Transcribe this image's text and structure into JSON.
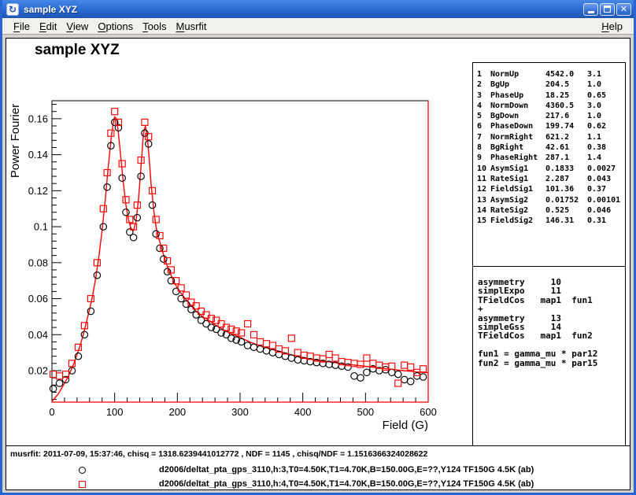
{
  "window": {
    "title": "sample XYZ"
  },
  "icons": {
    "app_icon": "↻",
    "close_glyph": "✕"
  },
  "menu": {
    "items": [
      "File",
      "Edit",
      "View",
      "Options",
      "Tools",
      "Musrfit"
    ],
    "right_items": [
      "Help"
    ]
  },
  "canvas": {
    "plot_title": "sample XYZ"
  },
  "parameters": {
    "rows": [
      [
        "1",
        "NormUp",
        "4542.0",
        "3.1"
      ],
      [
        "2",
        "BgUp",
        "204.5",
        "1.0"
      ],
      [
        "3",
        "PhaseUp",
        "18.25",
        "0.65"
      ],
      [
        "4",
        "NormDown",
        "4360.5",
        "3.0"
      ],
      [
        "5",
        "BgDown",
        "217.6",
        "1.0"
      ],
      [
        "6",
        "PhaseDown",
        "199.74",
        "0.62"
      ],
      [
        "7",
        "NormRight",
        "621.2",
        "1.1"
      ],
      [
        "8",
        "BgRight",
        "42.61",
        "0.38"
      ],
      [
        "9",
        "PhaseRight",
        "287.1",
        "1.4"
      ],
      [
        "10",
        "AsymSig1",
        "0.1833",
        "0.0027"
      ],
      [
        "11",
        "RateSig1",
        "2.287",
        "0.043"
      ],
      [
        "12",
        "FieldSig1",
        "101.36",
        "0.37"
      ],
      [
        "13",
        "AsymSig2",
        "0.01752",
        "0.00101"
      ],
      [
        "14",
        "RateSig2",
        "0.525",
        "0.046"
      ],
      [
        "15",
        "FieldSig2",
        "146.31",
        "0.31"
      ]
    ]
  },
  "theory": {
    "lines": [
      "asymmetry     10",
      "simplExpo     11",
      "TFieldCos   map1  fun1",
      "+",
      "asymmetry     13",
      "simpleGss     14",
      "TFieldCos   map1  fun2",
      "",
      "fun1 = gamma_mu * par12",
      "fun2 = gamma_mu * par15"
    ]
  },
  "status": {
    "fit_info": "musrfit: 2011-07-09, 15:37:46, chisq = 1318.6239441012772 , NDF = 1145 , chisq/NDF = 1.1516366324028622"
  },
  "legend": {
    "entries": [
      {
        "marker": "circle",
        "color": "#000000",
        "label": "d2006/deltat_pta_gps_3110,h:3,T0=4.50K,T1=4.70K,B=150.00G,E=??,Y124 TF150G 4.5K (ab)"
      },
      {
        "marker": "square",
        "color": "#ff0000",
        "label": "d2006/deltat_pta_gps_3110,h:4,T0=4.50K,T1=4.70K,B=150.00G,E=??,Y124 TF150G 4.5K (ab)"
      }
    ]
  },
  "colors": {
    "titlebar_blue": "#2f6fd6",
    "window_border": "#2766cf",
    "accent_red": "#ff0000",
    "marker_black": "#000000",
    "menu_bg": "#f1f0ec",
    "content_bg": "#d6d3ce"
  },
  "chart_data": {
    "type": "scatter",
    "title": "sample XYZ",
    "xlabel": "Field (G)",
    "ylabel": "Power Fourier",
    "xlim": [
      0,
      600
    ],
    "ylim": [
      0.0025,
      0.17
    ],
    "grid": false,
    "legend_position": "bottom",
    "x_ticks": [
      0,
      100,
      200,
      300,
      400,
      500,
      600
    ],
    "x_tick_labels": [
      "0",
      "100",
      "200",
      "300",
      "400",
      "500",
      "600"
    ],
    "x_minor_step": 20,
    "y_ticks": [
      0.02,
      0.04,
      0.06,
      0.08,
      0.1,
      0.12,
      0.14,
      0.16
    ],
    "y_tick_labels": [
      "0.02",
      "0.04",
      "0.06",
      "0.08",
      "0.1",
      "0.12",
      "0.14",
      "0.16"
    ],
    "y_minor_step": 0.004,
    "fit_line": {
      "name": "musrfit theory",
      "color": "#ff0000",
      "points": [
        [
          0,
          0.003
        ],
        [
          5,
          0.005
        ],
        [
          10,
          0.007
        ],
        [
          15,
          0.01
        ],
        [
          20,
          0.013
        ],
        [
          25,
          0.016
        ],
        [
          30,
          0.02
        ],
        [
          35,
          0.024
        ],
        [
          40,
          0.029
        ],
        [
          45,
          0.034
        ],
        [
          50,
          0.04
        ],
        [
          55,
          0.047
        ],
        [
          60,
          0.054
        ],
        [
          65,
          0.062
        ],
        [
          70,
          0.072
        ],
        [
          75,
          0.084
        ],
        [
          80,
          0.098
        ],
        [
          85,
          0.115
        ],
        [
          90,
          0.134
        ],
        [
          95,
          0.151
        ],
        [
          98,
          0.158
        ],
        [
          100,
          0.161
        ],
        [
          103,
          0.16
        ],
        [
          106,
          0.152
        ],
        [
          110,
          0.138
        ],
        [
          114,
          0.124
        ],
        [
          118,
          0.112
        ],
        [
          122,
          0.104
        ],
        [
          126,
          0.099
        ],
        [
          130,
          0.098
        ],
        [
          134,
          0.103
        ],
        [
          138,
          0.115
        ],
        [
          142,
          0.133
        ],
        [
          146,
          0.152
        ],
        [
          149,
          0.156
        ],
        [
          152,
          0.15
        ],
        [
          155,
          0.138
        ],
        [
          158,
          0.124
        ],
        [
          162,
          0.11
        ],
        [
          166,
          0.1
        ],
        [
          170,
          0.094
        ],
        [
          175,
          0.088
        ],
        [
          180,
          0.082
        ],
        [
          185,
          0.077
        ],
        [
          190,
          0.073
        ],
        [
          195,
          0.069
        ],
        [
          200,
          0.066
        ],
        [
          210,
          0.061
        ],
        [
          220,
          0.057
        ],
        [
          230,
          0.053
        ],
        [
          240,
          0.05
        ],
        [
          250,
          0.048
        ],
        [
          260,
          0.0455
        ],
        [
          270,
          0.0435
        ],
        [
          280,
          0.0415
        ],
        [
          290,
          0.04
        ],
        [
          300,
          0.0385
        ],
        [
          315,
          0.036
        ],
        [
          330,
          0.034
        ],
        [
          345,
          0.0325
        ],
        [
          360,
          0.031
        ],
        [
          375,
          0.0295
        ],
        [
          390,
          0.028
        ],
        [
          405,
          0.027
        ],
        [
          420,
          0.026
        ],
        [
          435,
          0.0252
        ],
        [
          450,
          0.0245
        ],
        [
          465,
          0.0238
        ],
        [
          480,
          0.0232
        ],
        [
          495,
          0.0226
        ],
        [
          510,
          0.022
        ],
        [
          525,
          0.0214
        ],
        [
          540,
          0.0208
        ],
        [
          555,
          0.0202
        ],
        [
          570,
          0.0197
        ],
        [
          585,
          0.0192
        ],
        [
          600,
          0.0188
        ]
      ]
    },
    "series": [
      {
        "name": "d2006/deltat_pta_gps_3110,h:3,T0=4.50K,T1=4.70K,B=150.00G,E=??,Y124 TF150G 4.5K (ab)",
        "marker": "circle",
        "color": "#000000",
        "points": [
          [
            2,
            0.01
          ],
          [
            12,
            0.013
          ],
          [
            22,
            0.015
          ],
          [
            32,
            0.02
          ],
          [
            42,
            0.028
          ],
          [
            52,
            0.04
          ],
          [
            62,
            0.053
          ],
          [
            72,
            0.073
          ],
          [
            82,
            0.1
          ],
          [
            88,
            0.122
          ],
          [
            94,
            0.145
          ],
          [
            100,
            0.158
          ],
          [
            106,
            0.155
          ],
          [
            112,
            0.127
          ],
          [
            118,
            0.108
          ],
          [
            124,
            0.097
          ],
          [
            130,
            0.094
          ],
          [
            136,
            0.105
          ],
          [
            142,
            0.128
          ],
          [
            148,
            0.152
          ],
          [
            154,
            0.146
          ],
          [
            160,
            0.112
          ],
          [
            166,
            0.096
          ],
          [
            172,
            0.088
          ],
          [
            178,
            0.082
          ],
          [
            184,
            0.075
          ],
          [
            190,
            0.07
          ],
          [
            198,
            0.064
          ],
          [
            206,
            0.06
          ],
          [
            214,
            0.057
          ],
          [
            222,
            0.054
          ],
          [
            230,
            0.051
          ],
          [
            238,
            0.048
          ],
          [
            246,
            0.046
          ],
          [
            254,
            0.044
          ],
          [
            262,
            0.043
          ],
          [
            270,
            0.041
          ],
          [
            278,
            0.04
          ],
          [
            286,
            0.038
          ],
          [
            294,
            0.037
          ],
          [
            302,
            0.036
          ],
          [
            312,
            0.034
          ],
          [
            322,
            0.033
          ],
          [
            332,
            0.032
          ],
          [
            342,
            0.031
          ],
          [
            352,
            0.03
          ],
          [
            362,
            0.029
          ],
          [
            372,
            0.028
          ],
          [
            382,
            0.027
          ],
          [
            392,
            0.026
          ],
          [
            402,
            0.0255
          ],
          [
            412,
            0.025
          ],
          [
            422,
            0.0245
          ],
          [
            432,
            0.024
          ],
          [
            442,
            0.0235
          ],
          [
            452,
            0.023
          ],
          [
            462,
            0.0225
          ],
          [
            472,
            0.022
          ],
          [
            482,
            0.017
          ],
          [
            492,
            0.016
          ],
          [
            502,
            0.019
          ],
          [
            512,
            0.021
          ],
          [
            522,
            0.02
          ],
          [
            532,
            0.0205
          ],
          [
            542,
            0.019
          ],
          [
            552,
            0.018
          ],
          [
            562,
            0.015
          ],
          [
            572,
            0.014
          ],
          [
            582,
            0.017
          ],
          [
            592,
            0.0165
          ]
        ]
      },
      {
        "name": "d2006/deltat_pta_gps_3110,h:4,T0=4.50K,T1=4.70K,B=150.00G,E=??,Y124 TF150G 4.5K (ab)",
        "marker": "square",
        "color": "#ff0000",
        "points": [
          [
            2,
            0.018
          ],
          [
            12,
            0.017
          ],
          [
            22,
            0.018
          ],
          [
            32,
            0.024
          ],
          [
            42,
            0.033
          ],
          [
            52,
            0.045
          ],
          [
            62,
            0.06
          ],
          [
            72,
            0.08
          ],
          [
            82,
            0.11
          ],
          [
            88,
            0.13
          ],
          [
            94,
            0.152
          ],
          [
            100,
            0.164
          ],
          [
            106,
            0.158
          ],
          [
            112,
            0.135
          ],
          [
            118,
            0.115
          ],
          [
            124,
            0.104
          ],
          [
            130,
            0.1
          ],
          [
            136,
            0.112
          ],
          [
            142,
            0.137
          ],
          [
            148,
            0.158
          ],
          [
            154,
            0.15
          ],
          [
            160,
            0.12
          ],
          [
            166,
            0.104
          ],
          [
            172,
            0.095
          ],
          [
            178,
            0.088
          ],
          [
            184,
            0.081
          ],
          [
            190,
            0.076
          ],
          [
            198,
            0.07
          ],
          [
            206,
            0.066
          ],
          [
            214,
            0.062
          ],
          [
            222,
            0.058
          ],
          [
            230,
            0.056
          ],
          [
            238,
            0.053
          ],
          [
            246,
            0.051
          ],
          [
            254,
            0.049
          ],
          [
            262,
            0.048
          ],
          [
            270,
            0.046
          ],
          [
            278,
            0.044
          ],
          [
            286,
            0.043
          ],
          [
            294,
            0.042
          ],
          [
            302,
            0.041
          ],
          [
            312,
            0.046
          ],
          [
            322,
            0.04
          ],
          [
            332,
            0.036
          ],
          [
            342,
            0.035
          ],
          [
            352,
            0.034
          ],
          [
            362,
            0.032
          ],
          [
            372,
            0.031
          ],
          [
            382,
            0.038
          ],
          [
            392,
            0.03
          ],
          [
            402,
            0.0285
          ],
          [
            412,
            0.028
          ],
          [
            422,
            0.027
          ],
          [
            432,
            0.0265
          ],
          [
            442,
            0.029
          ],
          [
            452,
            0.027
          ],
          [
            462,
            0.025
          ],
          [
            472,
            0.0245
          ],
          [
            482,
            0.024
          ],
          [
            492,
            0.0235
          ],
          [
            502,
            0.027
          ],
          [
            512,
            0.024
          ],
          [
            522,
            0.023
          ],
          [
            532,
            0.022
          ],
          [
            542,
            0.0225
          ],
          [
            552,
            0.013
          ],
          [
            562,
            0.023
          ],
          [
            572,
            0.022
          ],
          [
            582,
            0.019
          ],
          [
            592,
            0.021
          ]
        ]
      }
    ]
  }
}
